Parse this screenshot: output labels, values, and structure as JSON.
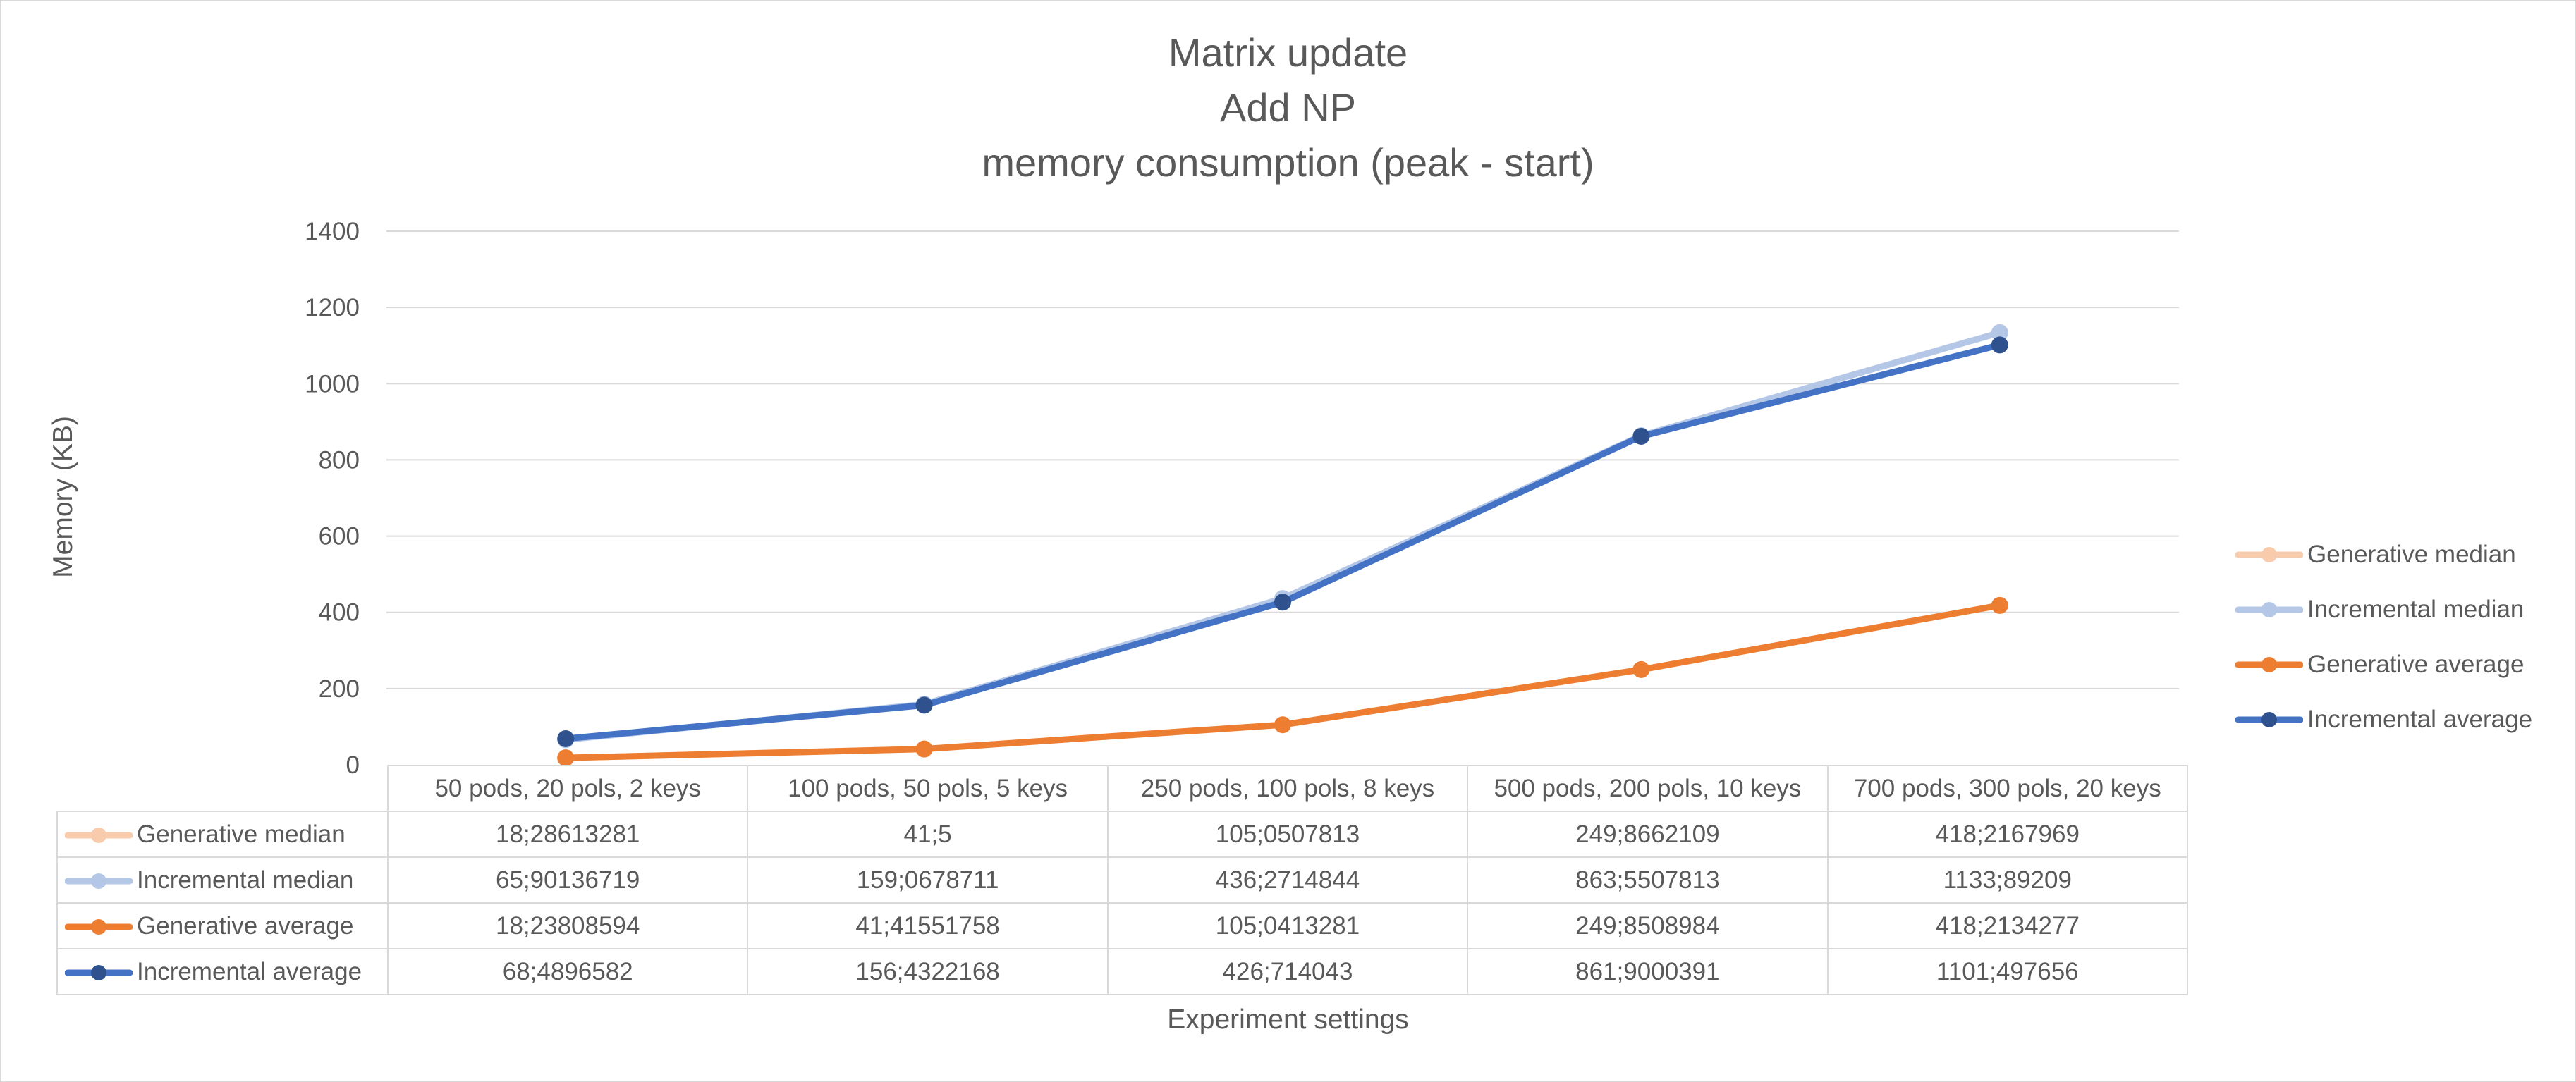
{
  "chart_data": {
    "type": "line",
    "title": [
      "Matrix update",
      "Add NP",
      "memory consumption (peak - start)"
    ],
    "xlabel": "Experiment settings",
    "ylabel": "Memory  (KB)",
    "ylim": [
      0,
      1400
    ],
    "yticks": [
      "0",
      "200",
      "400",
      "600",
      "800",
      "1000",
      "1200",
      "1400"
    ],
    "grid": true,
    "legend_position": "right",
    "categories": [
      "50 pods, 20 pols, 2 keys",
      "100 pods, 50 pols, 5 keys",
      "250 pods, 100 pols, 8 keys",
      "500 pods, 200 pols, 10 keys",
      "700 pods, 300 pols, 20 keys"
    ],
    "series": [
      {
        "name": "Generative median",
        "color": "#f8cbad",
        "values": [
          18.28613281,
          41.5,
          105.0507813,
          249.8662109,
          418.2167969
        ],
        "labels": [
          "18;28613281",
          "41;5",
          "105;0507813",
          "249;8662109",
          "418;2167969"
        ]
      },
      {
        "name": "Incremental median",
        "color": "#b4c7e7",
        "values": [
          65.90136719,
          159.0678711,
          436.2714844,
          863.5507813,
          1133.89209
        ],
        "labels": [
          "65;90136719",
          "159;0678711",
          "436;2714844",
          "863;5507813",
          "1133;89209"
        ]
      },
      {
        "name": "Generative average",
        "color": "#ed7d31",
        "values": [
          18.23808594,
          41.41551758,
          105.0413281,
          249.8508984,
          418.2134277
        ],
        "labels": [
          "18;23808594",
          "41;41551758",
          "105;0413281",
          "249;8508984",
          "418;2134277"
        ]
      },
      {
        "name": "Incremental average",
        "color": "#4472c4",
        "marker_color": "#2f528f",
        "values": [
          68.4896582,
          156.4322168,
          426.714043,
          861.9000391,
          1101.497656
        ],
        "labels": [
          "68;4896582",
          "156;4322168",
          "426;714043",
          "861;9000391",
          "1101;497656"
        ]
      }
    ]
  }
}
